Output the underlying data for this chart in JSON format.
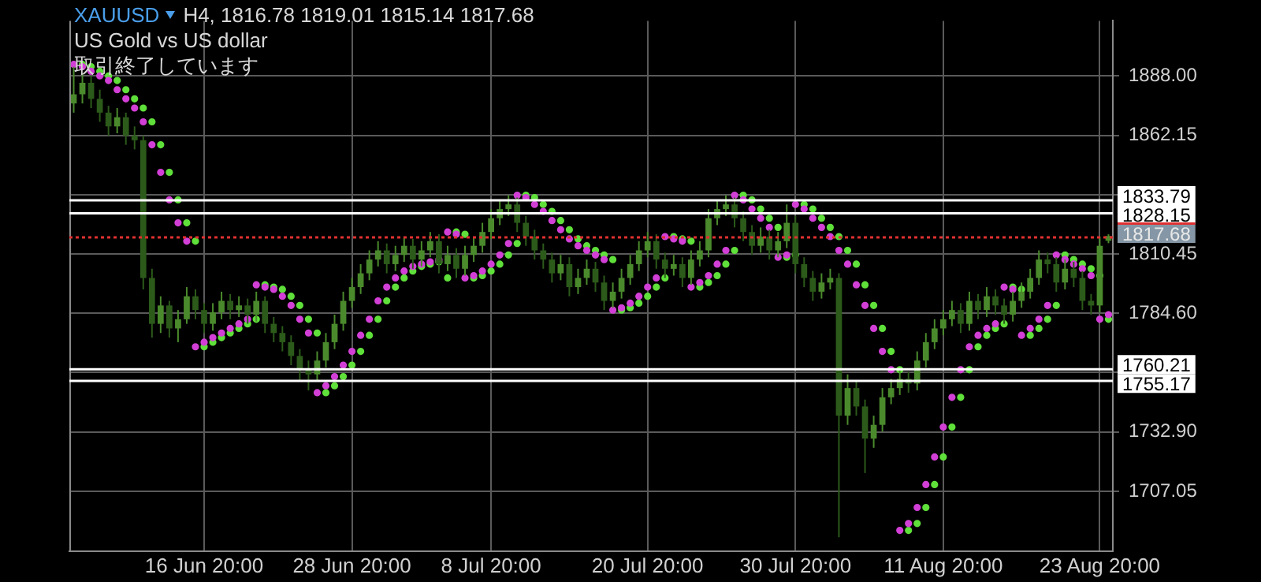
{
  "chart_data": {
    "type": "candlestick",
    "title": "XAUUSD",
    "subtitle": "US Gold vs US dollar",
    "annotations": [
      "H4, 1816.78 1819.01 1815.14 1817.68",
      "取引終了しています"
    ],
    "categories": [
      null,
      null,
      null,
      null,
      null,
      null,
      null,
      null,
      null,
      null,
      null,
      null,
      null,
      null,
      null,
      "16 Jun 20:00",
      null,
      null,
      null,
      null,
      null,
      null,
      null,
      null,
      null,
      null,
      null,
      null,
      null,
      null,
      null,
      null,
      "28 Jun 20:00",
      null,
      null,
      null,
      null,
      null,
      null,
      null,
      null,
      null,
      null,
      null,
      null,
      null,
      null,
      null,
      "8 Jul 20:00",
      null,
      null,
      null,
      null,
      null,
      null,
      null,
      null,
      null,
      null,
      null,
      null,
      null,
      null,
      null,
      null,
      null,
      "20 Jul 20:00",
      null,
      null,
      null,
      null,
      null,
      null,
      null,
      null,
      null,
      null,
      null,
      null,
      null,
      null,
      null,
      null,
      "30 Jul 20:00",
      null,
      null,
      null,
      null,
      null,
      null,
      null,
      null,
      null,
      null,
      null,
      null,
      null,
      null,
      null,
      null,
      "11 Aug 20:00",
      null,
      null,
      null,
      null,
      null,
      null,
      null,
      null,
      null,
      null,
      null,
      null,
      null,
      null,
      null,
      null,
      null,
      "23 Aug 20:00",
      null
    ],
    "colors": [
      "#4a8a2c",
      "#4a8a2c",
      "#2c5a1a",
      "#2c5a1a",
      "#2c5a1a",
      "#4a8a2c",
      "#2c5a1a",
      "#2c5a1a",
      "#2c5a1a",
      "#2c5a1a",
      "#4a8a2c",
      "#2c5a1a",
      "#4a8a2c",
      "#4a8a2c",
      "#2c5a1a",
      "#2c5a1a",
      "#4a8a2c",
      "#4a8a2c",
      "#2c5a1a",
      "#4a8a2c",
      "#2c5a1a",
      "#4a8a2c",
      "#2c5a1a",
      "#2c5a1a",
      "#2c5a1a",
      "#2c5a1a",
      "#2c5a1a",
      "#2c5a1a",
      "#4a8a2c",
      "#4a8a2c",
      "#4a8a2c",
      "#4a8a2c",
      "#4a8a2c",
      "#4a8a2c",
      "#4a8a2c",
      "#4a8a2c",
      "#2c5a1a",
      "#4a8a2c",
      "#4a8a2c",
      "#2c5a1a",
      "#4a8a2c",
      "#4a8a2c",
      "#2c5a1a",
      "#4a8a2c",
      "#2c5a1a",
      "#4a8a2c",
      "#4a8a2c",
      "#4a8a2c",
      "#4a8a2c",
      "#4a8a2c",
      "#4a8a2c",
      "#2c5a1a",
      "#2c5a1a",
      "#2c5a1a",
      "#2c5a1a",
      "#2c5a1a",
      "#4a8a2c",
      "#2c5a1a",
      "#4a8a2c",
      "#4a8a2c",
      "#2c5a1a",
      "#2c5a1a",
      "#4a8a2c",
      "#4a8a2c",
      "#4a8a2c",
      "#4a8a2c",
      "#4a8a2c",
      "#2c5a1a",
      "#2c5a1a",
      "#4a8a2c",
      "#2c5a1a",
      "#4a8a2c",
      "#4a8a2c",
      "#4a8a2c",
      "#4a8a2c",
      "#4a8a2c",
      "#2c5a1a",
      "#2c5a1a",
      "#2c5a1a",
      "#4a8a2c",
      "#2c5a1a",
      "#4a8a2c",
      "#4a8a2c",
      "#2c5a1a",
      "#2c5a1a",
      "#2c5a1a",
      "#4a8a2c",
      "#4a8a2c",
      "#2c5a1a",
      "#4a8a2c",
      "#2c5a1a",
      "#2c5a1a",
      "#4a8a2c",
      "#4a8a2c",
      "#4a8a2c",
      "#4a8a2c",
      "#2c5a1a",
      "#4a8a2c",
      "#4a8a2c",
      "#4a8a2c",
      "#4a8a2c",
      "#4a8a2c",
      "#2c5a1a",
      "#4a8a2c",
      "#2c5a1a",
      "#4a8a2c",
      "#2c5a1a",
      "#2c5a1a",
      "#4a8a2c",
      "#4a8a2c",
      "#4a8a2c",
      "#4a8a2c",
      "#2c5a1a",
      "#2c5a1a",
      "#4a8a2c",
      "#2c5a1a",
      "#2c5a1a",
      "#2c5a1a",
      "#4a8a2c",
      "#4a8a2c"
    ],
    "ohlc": [
      [
        1876,
        1892,
        1872,
        1880
      ],
      [
        1880,
        1889,
        1876,
        1885
      ],
      [
        1885,
        1888,
        1874,
        1878
      ],
      [
        1878,
        1882,
        1868,
        1872
      ],
      [
        1872,
        1875,
        1862,
        1866
      ],
      [
        1866,
        1874,
        1863,
        1870
      ],
      [
        1870,
        1872,
        1858,
        1862
      ],
      [
        1862,
        1866,
        1856,
        1860
      ],
      [
        1860,
        1862,
        1795,
        1800
      ],
      [
        1800,
        1804,
        1774,
        1780
      ],
      [
        1780,
        1792,
        1776,
        1788
      ],
      [
        1788,
        1790,
        1774,
        1778
      ],
      [
        1778,
        1786,
        1772,
        1782
      ],
      [
        1782,
        1796,
        1780,
        1792
      ],
      [
        1792,
        1795,
        1782,
        1786
      ],
      [
        1786,
        1789,
        1776,
        1780
      ],
      [
        1780,
        1789,
        1777,
        1785
      ],
      [
        1785,
        1794,
        1782,
        1790
      ],
      [
        1790,
        1793,
        1782,
        1786
      ],
      [
        1786,
        1792,
        1783,
        1788
      ],
      [
        1788,
        1791,
        1780,
        1784
      ],
      [
        1784,
        1794,
        1781,
        1790
      ],
      [
        1790,
        1792,
        1776,
        1780
      ],
      [
        1780,
        1783,
        1772,
        1776
      ],
      [
        1776,
        1779,
        1768,
        1772
      ],
      [
        1772,
        1775,
        1762,
        1766
      ],
      [
        1766,
        1769,
        1755,
        1760
      ],
      [
        1760,
        1764,
        1751,
        1758
      ],
      [
        1758,
        1768,
        1755,
        1764
      ],
      [
        1764,
        1776,
        1761,
        1772
      ],
      [
        1772,
        1784,
        1769,
        1780
      ],
      [
        1780,
        1794,
        1777,
        1790
      ],
      [
        1790,
        1800,
        1787,
        1796
      ],
      [
        1796,
        1806,
        1793,
        1802
      ],
      [
        1802,
        1812,
        1799,
        1808
      ],
      [
        1808,
        1816,
        1805,
        1812
      ],
      [
        1812,
        1815,
        1802,
        1806
      ],
      [
        1806,
        1814,
        1803,
        1810
      ],
      [
        1810,
        1818,
        1807,
        1814
      ],
      [
        1814,
        1817,
        1804,
        1808
      ],
      [
        1808,
        1816,
        1805,
        1812
      ],
      [
        1812,
        1820,
        1809,
        1816
      ],
      [
        1816,
        1819,
        1802,
        1806
      ],
      [
        1806,
        1814,
        1803,
        1810
      ],
      [
        1810,
        1813,
        1800,
        1804
      ],
      [
        1804,
        1814,
        1801,
        1810
      ],
      [
        1810,
        1818,
        1807,
        1814
      ],
      [
        1814,
        1824,
        1811,
        1820
      ],
      [
        1820,
        1830,
        1817,
        1826
      ],
      [
        1826,
        1834,
        1823,
        1830
      ],
      [
        1830,
        1836,
        1827,
        1832
      ],
      [
        1832,
        1835,
        1820,
        1824
      ],
      [
        1824,
        1827,
        1814,
        1818
      ],
      [
        1818,
        1821,
        1808,
        1812
      ],
      [
        1812,
        1815,
        1804,
        1808
      ],
      [
        1808,
        1811,
        1798,
        1802
      ],
      [
        1802,
        1810,
        1799,
        1806
      ],
      [
        1806,
        1809,
        1792,
        1796
      ],
      [
        1796,
        1804,
        1793,
        1800
      ],
      [
        1800,
        1808,
        1797,
        1804
      ],
      [
        1804,
        1807,
        1794,
        1798
      ],
      [
        1798,
        1801,
        1786,
        1790
      ],
      [
        1790,
        1798,
        1787,
        1794
      ],
      [
        1794,
        1804,
        1791,
        1800
      ],
      [
        1800,
        1810,
        1797,
        1806
      ],
      [
        1806,
        1816,
        1803,
        1812
      ],
      [
        1812,
        1820,
        1809,
        1816
      ],
      [
        1816,
        1819,
        1804,
        1808
      ],
      [
        1808,
        1811,
        1800,
        1804
      ],
      [
        1804,
        1810,
        1801,
        1806
      ],
      [
        1806,
        1809,
        1796,
        1800
      ],
      [
        1800,
        1812,
        1797,
        1808
      ],
      [
        1808,
        1816,
        1805,
        1812
      ],
      [
        1812,
        1830,
        1809,
        1826
      ],
      [
        1826,
        1834,
        1823,
        1830
      ],
      [
        1830,
        1836,
        1827,
        1832
      ],
      [
        1832,
        1835,
        1822,
        1826
      ],
      [
        1826,
        1829,
        1816,
        1820
      ],
      [
        1820,
        1823,
        1810,
        1814
      ],
      [
        1814,
        1822,
        1811,
        1818
      ],
      [
        1818,
        1821,
        1808,
        1812
      ],
      [
        1812,
        1820,
        1809,
        1816
      ],
      [
        1816,
        1832,
        1813,
        1824
      ],
      [
        1824,
        1827,
        1802,
        1806
      ],
      [
        1806,
        1809,
        1796,
        1800
      ],
      [
        1800,
        1803,
        1790,
        1794
      ],
      [
        1794,
        1802,
        1791,
        1798
      ],
      [
        1798,
        1804,
        1795,
        1800
      ],
      [
        1800,
        1802,
        1687,
        1740
      ],
      [
        1740,
        1758,
        1736,
        1752
      ],
      [
        1752,
        1755,
        1740,
        1744
      ],
      [
        1744,
        1747,
        1715,
        1730
      ],
      [
        1730,
        1740,
        1726,
        1736
      ],
      [
        1736,
        1752,
        1733,
        1748
      ],
      [
        1748,
        1756,
        1745,
        1752
      ],
      [
        1752,
        1760,
        1749,
        1756
      ],
      [
        1756,
        1759,
        1750,
        1754
      ],
      [
        1754,
        1768,
        1751,
        1764
      ],
      [
        1764,
        1776,
        1761,
        1772
      ],
      [
        1772,
        1782,
        1769,
        1778
      ],
      [
        1778,
        1786,
        1775,
        1782
      ],
      [
        1782,
        1790,
        1779,
        1786
      ],
      [
        1786,
        1789,
        1776,
        1780
      ],
      [
        1780,
        1794,
        1777,
        1790
      ],
      [
        1790,
        1793,
        1782,
        1786
      ],
      [
        1786,
        1796,
        1783,
        1792
      ],
      [
        1792,
        1795,
        1784,
        1788
      ],
      [
        1788,
        1791,
        1780,
        1784
      ],
      [
        1784,
        1794,
        1781,
        1790
      ],
      [
        1790,
        1798,
        1787,
        1794
      ],
      [
        1794,
        1804,
        1791,
        1800
      ],
      [
        1800,
        1812,
        1797,
        1808
      ],
      [
        1808,
        1811,
        1802,
        1806
      ],
      [
        1806,
        1809,
        1794,
        1798
      ],
      [
        1798,
        1808,
        1795,
        1804
      ],
      [
        1804,
        1807,
        1796,
        1800
      ],
      [
        1800,
        1803,
        1786,
        1790
      ],
      [
        1790,
        1793,
        1784,
        1788
      ],
      [
        1788,
        1818,
        1785,
        1814
      ],
      [
        1816.78,
        1819.01,
        1815.14,
        1817.68
      ]
    ],
    "series": [
      {
        "type": "scatter",
        "color": "#d23fd6",
        "values": [
          1893,
          1892,
          1890,
          1888,
          1886,
          1882,
          1878,
          1874,
          1868,
          1858,
          1846,
          1834,
          1824,
          1816,
          1770,
          1772,
          1774,
          1776,
          1778,
          1780,
          1782,
          1797,
          1796,
          1795,
          1792,
          1788,
          1782,
          1776,
          1750,
          1753,
          1757,
          1762,
          1768,
          1775,
          1782,
          1790,
          1796,
          1800,
          1803,
          1805,
          1806,
          1807,
          1808,
          1820,
          1819,
          1800,
          1801,
          1803,
          1806,
          1810,
          1815,
          1836,
          1835,
          1832,
          1829,
          1825,
          1821,
          1817,
          1814,
          1812,
          1810,
          1808,
          1786,
          1787,
          1789,
          1792,
          1796,
          1800,
          1818,
          1817,
          1816,
          1796,
          1798,
          1801,
          1806,
          1812,
          1836,
          1834,
          1830,
          1826,
          1822,
          1809,
          1810,
          1832,
          1830,
          1826,
          1822,
          1818,
          1812,
          1806,
          1797,
          1788,
          1778,
          1768,
          1760,
          1690,
          1693,
          1700,
          1710,
          1722,
          1735,
          1748,
          1760,
          1770,
          1775,
          1778,
          1780,
          1796,
          1795,
          1775,
          1778,
          1782,
          1788,
          1810,
          1808,
          1806,
          1804,
          1801,
          1782,
          1784
        ]
      },
      {
        "type": "scatter",
        "color": "#5fe03a",
        "values": [
          null,
          1893,
          1892,
          1890,
          1888,
          1886,
          1882,
          1878,
          1874,
          1868,
          1858,
          1846,
          1834,
          1824,
          1816,
          1770,
          1772,
          1774,
          1776,
          1778,
          1780,
          1782,
          1797,
          1796,
          1795,
          1792,
          1788,
          1782,
          1776,
          1750,
          1753,
          1757,
          1762,
          1768,
          1775,
          1782,
          1790,
          1796,
          1800,
          1803,
          1805,
          1806,
          1807,
          1800,
          1820,
          1819,
          1800,
          1801,
          1803,
          1806,
          1810,
          1815,
          1836,
          1835,
          1832,
          1829,
          1825,
          1821,
          1817,
          1814,
          1812,
          1810,
          1808,
          1786,
          1787,
          1789,
          1792,
          1796,
          1800,
          1818,
          1817,
          1816,
          1796,
          1798,
          1801,
          1806,
          1812,
          1836,
          1834,
          1830,
          1826,
          1822,
          1809,
          1810,
          1832,
          1830,
          1826,
          1822,
          1818,
          1812,
          1806,
          1797,
          1788,
          1778,
          1768,
          1760,
          1690,
          1693,
          1700,
          1710,
          1722,
          1735,
          1748,
          1760,
          1770,
          1775,
          1778,
          1780,
          1796,
          1795,
          1775,
          1778,
          1782,
          1788,
          1810,
          1808,
          1806,
          1804,
          1801,
          1782
        ]
      }
    ],
    "ylim": [
      1681,
      1912
    ],
    "yticks": [
      {
        "value": 1707.05,
        "label": "1707.05"
      },
      {
        "value": 1732.9,
        "label": "1732.90"
      },
      {
        "value": 1758.75,
        "label": null
      },
      {
        "value": 1784.6,
        "label": "1784.60"
      },
      {
        "value": 1810.45,
        "label": "1810.45"
      },
      {
        "value": 1836.3,
        "label": null
      },
      {
        "value": 1862.15,
        "label": "1862.15"
      },
      {
        "value": 1888,
        "label": "1888.00"
      }
    ],
    "ref_lines": [
      {
        "axis": "y",
        "value": 1833.79,
        "label": "1833.79",
        "color": "#ffffff"
      },
      {
        "axis": "y",
        "value": 1828.15,
        "label": "1828.15",
        "color": "#ffffff"
      },
      {
        "axis": "y",
        "value": 1817.68,
        "label": "1817.68",
        "color": "#e03030",
        "line_style": "dotted"
      },
      {
        "axis": "y",
        "value": 1760.21,
        "label": "1760.21",
        "color": "#ffffff"
      },
      {
        "axis": "y",
        "value": 1755.17,
        "label": "1755.17",
        "color": "#ffffff"
      }
    ],
    "grid": true,
    "legend": false,
    "marker": "circle"
  }
}
